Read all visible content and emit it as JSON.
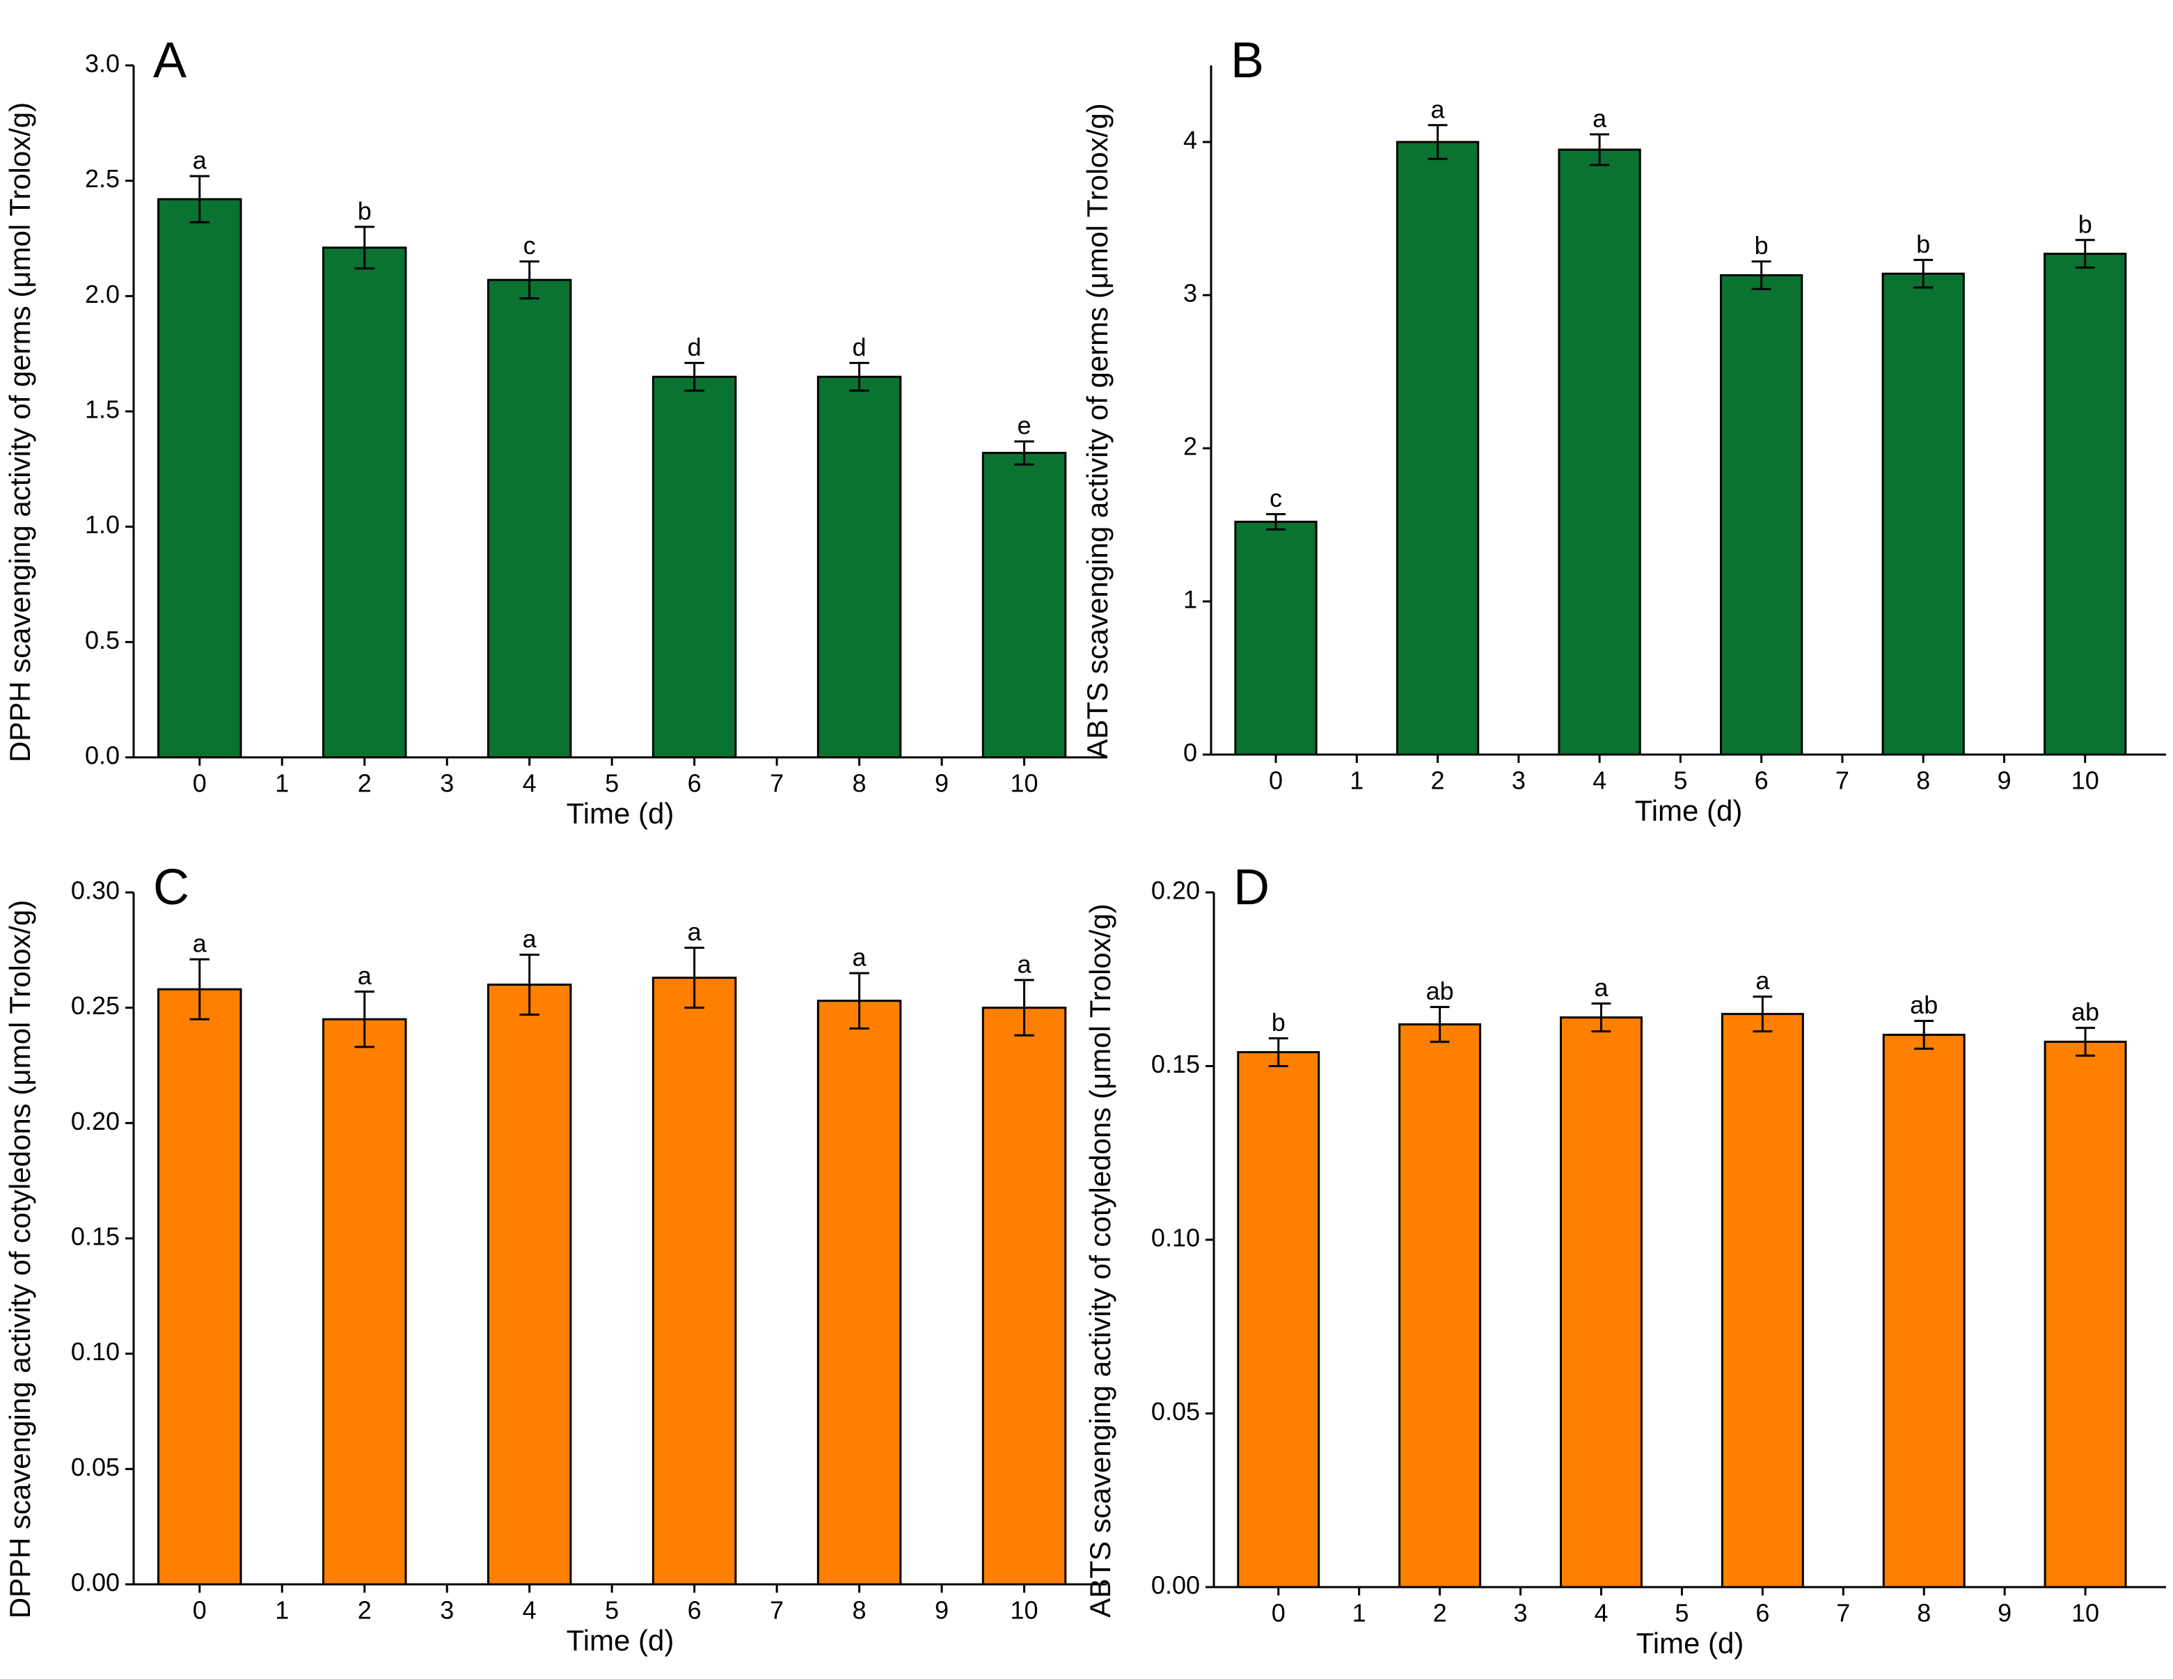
{
  "chart_data": [
    {
      "type": "bar",
      "panel": "A",
      "ylabel": "DPPH scavenging activity of germs (μmol Trolox/g)",
      "xlabel": "Time (d)",
      "x": [
        0,
        2,
        4,
        6,
        8,
        10
      ],
      "values": [
        2.42,
        2.21,
        2.07,
        1.65,
        1.65,
        1.32
      ],
      "errors": [
        0.1,
        0.09,
        0.08,
        0.06,
        0.06,
        0.05
      ],
      "letters": [
        "a",
        "b",
        "c",
        "d",
        "d",
        "e"
      ],
      "color": "#0a7332",
      "xlim": [
        -0.8,
        11
      ],
      "xticks": [
        0,
        1,
        2,
        3,
        4,
        5,
        6,
        7,
        8,
        9,
        10
      ],
      "ylim": [
        0,
        3
      ],
      "yticks": [
        {
          "value": 0,
          "label": "0.0"
        },
        0.5,
        {
          "value": 1,
          "label": "1.0"
        },
        1.5,
        {
          "value": 2,
          "label": "2.0"
        },
        2.5,
        {
          "value": 3,
          "label": "3.0"
        }
      ]
    },
    {
      "type": "bar",
      "panel": "B",
      "ylabel": "ABTS scavenging activity of germs (μmol Trolox/g)",
      "xlabel": "Time (d)",
      "x": [
        0,
        2,
        4,
        6,
        8,
        10
      ],
      "values": [
        1.52,
        4.0,
        3.95,
        3.13,
        3.14,
        3.27
      ],
      "errors": [
        0.05,
        0.11,
        0.1,
        0.09,
        0.09,
        0.09
      ],
      "letters": [
        "c",
        "a",
        "a",
        "b",
        "b",
        "b"
      ],
      "color": "#0a7332",
      "xlim": [
        -0.8,
        11
      ],
      "xticks": [
        0,
        1,
        2,
        3,
        4,
        5,
        6,
        7,
        8,
        9,
        10
      ],
      "ylim": [
        0,
        4.5
      ],
      "yticks": [
        0,
        1,
        2,
        3,
        4
      ]
    },
    {
      "type": "bar",
      "panel": "C",
      "ylabel": "DPPH scavenging activity of cotyledons (μmol Trolox/g)",
      "xlabel": "Time (d)",
      "x": [
        0,
        2,
        4,
        6,
        8,
        10
      ],
      "values": [
        0.258,
        0.245,
        0.26,
        0.263,
        0.253,
        0.25
      ],
      "errors": [
        0.013,
        0.012,
        0.013,
        0.013,
        0.012,
        0.012
      ],
      "letters": [
        "a",
        "a",
        "a",
        "a",
        "a",
        "a"
      ],
      "color": "#ff7f00",
      "xlim": [
        -0.8,
        11
      ],
      "xticks": [
        0,
        1,
        2,
        3,
        4,
        5,
        6,
        7,
        8,
        9,
        10
      ],
      "ylim": [
        0,
        0.3
      ],
      "yticks": [
        {
          "value": 0,
          "label": "0.00"
        },
        0.05,
        {
          "value": 0.1,
          "label": "0.10"
        },
        0.15,
        {
          "value": 0.2,
          "label": "0.20"
        },
        0.25,
        {
          "value": 0.3,
          "label": "0.30"
        }
      ]
    },
    {
      "type": "bar",
      "panel": "D",
      "ylabel": "ABTS scavenging activity of cotyledons (μmol Trolox/g)",
      "xlabel": "Time (d)",
      "x": [
        0,
        2,
        4,
        6,
        8,
        10
      ],
      "values": [
        0.154,
        0.162,
        0.164,
        0.165,
        0.159,
        0.157
      ],
      "errors": [
        0.004,
        0.005,
        0.004,
        0.005,
        0.004,
        0.004
      ],
      "letters": [
        "b",
        "ab",
        "a",
        "a",
        "ab",
        "ab"
      ],
      "color": "#ff7f00",
      "xlim": [
        -0.8,
        11
      ],
      "xticks": [
        0,
        1,
        2,
        3,
        4,
        5,
        6,
        7,
        8,
        9,
        10
      ],
      "ylim": [
        0,
        0.2
      ],
      "yticks": [
        {
          "value": 0,
          "label": "0.00"
        },
        0.05,
        {
          "value": 0.1,
          "label": "0.10"
        },
        0.15,
        {
          "value": 0.2,
          "label": "0.20"
        }
      ]
    }
  ]
}
